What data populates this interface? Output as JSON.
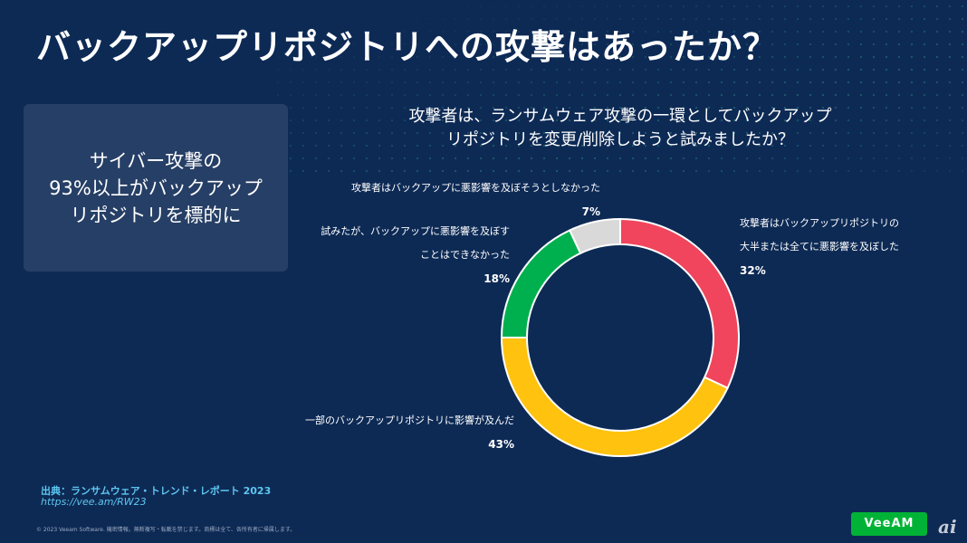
{
  "title": "バックアップリポジトリへの攻撃はあったか？",
  "callout": {
    "lines": [
      "サイバー攻撃の",
      "93%以上がバックアップ",
      "リポジトリを標的に"
    ]
  },
  "question": {
    "lines": [
      "攻撃者は、ランサムウェア攻撃の一環としてバックアップ",
      "リポジトリを変更/削除しようと試みましたか？"
    ]
  },
  "chart_data": {
    "type": "pie",
    "donut": true,
    "slices": [
      {
        "label": "攻撃者はバックアップリポジトリの大半または全てに悪影響を及ぼした",
        "label_lines": [
          "攻撃者はバックアップリポジトリの",
          "大半または全てに悪影響を及ぼした"
        ],
        "value": 32,
        "value_label": "32%",
        "color": "#f0455c"
      },
      {
        "label": "一部のバックアップリポジトリに影響が及んだ",
        "label_lines": [
          "一部のバックアップリポジトリに影響が及んだ"
        ],
        "value": 43,
        "value_label": "43%",
        "color": "#ffc20e"
      },
      {
        "label": "試みたが、バックアップに悪影響を及ぼすことはできなかった",
        "label_lines": [
          "試みたが、バックアップに悪影響を及ぼす",
          "ことはできなかった"
        ],
        "value": 18,
        "value_label": "18%",
        "color": "#00b04f"
      },
      {
        "label": "攻撃者はバックアップに悪影響を及ぼそうとしなかった",
        "label_lines": [
          "攻撃者はバックアップに悪影響を及ぼそうとしなかった"
        ],
        "value": 7,
        "value_label": "7%",
        "color": "#d9d9d9"
      }
    ]
  },
  "source": {
    "label": "出典：ランサムウェア・トレンド・レポート 2023",
    "url": "https://vee.am/RW23"
  },
  "footer": {
    "copyright": "© 2023 Veeam Software. 機密情報。無断複写・転載を禁じます。商標は全て、各所有者に帰属します。",
    "logo_text": "VeeAM",
    "ai_mark": "ai"
  }
}
